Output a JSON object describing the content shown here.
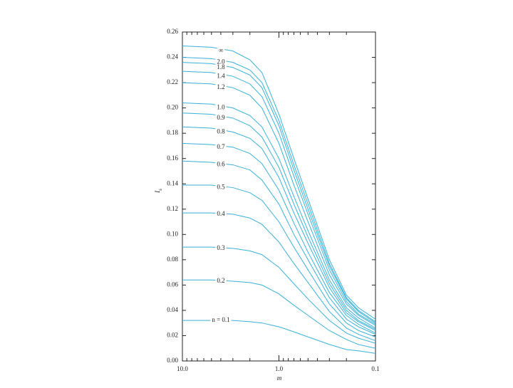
{
  "chart_data": {
    "type": "line",
    "x_label": "m",
    "y_label": {
      "main": "I",
      "sub": "s"
    },
    "xscale": "log",
    "xlim": [
      10,
      0.1
    ],
    "xticks": [
      {
        "value": 10,
        "label": "10.0"
      },
      {
        "value": 1,
        "label": "1.0"
      },
      0.1
    ],
    "xminorticks": [
      9,
      8,
      7,
      6,
      5,
      4,
      3,
      2,
      0.9,
      0.8,
      0.7,
      0.6,
      0.5,
      0.4,
      0.3,
      0.2
    ],
    "ylim": [
      0,
      0.26
    ],
    "yticks": [
      {
        "value": 0,
        "label": "0.00"
      },
      {
        "value": 0.02,
        "label": "0.02"
      },
      {
        "value": 0.04,
        "label": "0.04"
      },
      {
        "value": 0.06,
        "label": "0.06"
      },
      {
        "value": 0.08,
        "label": "0.08"
      },
      {
        "value": 0.1,
        "label": "0.10"
      },
      {
        "value": 0.12,
        "label": "0.12"
      },
      {
        "value": 0.14,
        "label": "0.14"
      },
      {
        "value": 0.16,
        "label": "0.16"
      },
      {
        "value": 0.18,
        "label": "0.18"
      },
      {
        "value": 0.2,
        "label": "0.20"
      },
      {
        "value": 0.22,
        "label": "0.22"
      },
      {
        "value": 0.24,
        "label": "0.24"
      },
      {
        "value": 0.26,
        "label": "0.26"
      }
    ],
    "color": "#3ab0d8",
    "x": [
      10,
      5,
      3,
      2,
      1.5,
      1,
      0.7,
      0.5,
      0.3,
      0.2,
      0.15,
      0.1
    ],
    "series": [
      {
        "name": "∞",
        "values": [
          0.249,
          0.248,
          0.245,
          0.238,
          0.228,
          0.195,
          0.16,
          0.128,
          0.08,
          0.052,
          0.042,
          0.033
        ]
      },
      {
        "name": "2.0",
        "values": [
          0.24,
          0.239,
          0.236,
          0.23,
          0.22,
          0.19,
          0.155,
          0.124,
          0.077,
          0.05,
          0.04,
          0.031
        ]
      },
      {
        "name": "1.8",
        "values": [
          0.236,
          0.235,
          0.232,
          0.226,
          0.216,
          0.186,
          0.151,
          0.12,
          0.075,
          0.049,
          0.039,
          0.03
        ]
      },
      {
        "name": "1.4",
        "values": [
          0.229,
          0.228,
          0.225,
          0.219,
          0.209,
          0.18,
          0.146,
          0.116,
          0.072,
          0.047,
          0.037,
          0.029
        ]
      },
      {
        "name": "1.2",
        "values": [
          0.22,
          0.219,
          0.216,
          0.21,
          0.2,
          0.172,
          0.139,
          0.11,
          0.068,
          0.045,
          0.036,
          0.028
        ]
      },
      {
        "name": "1.0",
        "values": [
          0.204,
          0.203,
          0.2,
          0.194,
          0.185,
          0.16,
          0.13,
          0.103,
          0.064,
          0.042,
          0.034,
          0.026
        ]
      },
      {
        "name": "0.9",
        "values": [
          0.196,
          0.195,
          0.192,
          0.186,
          0.177,
          0.153,
          0.124,
          0.098,
          0.061,
          0.04,
          0.032,
          0.025
        ]
      },
      {
        "name": "0.8",
        "values": [
          0.185,
          0.184,
          0.181,
          0.176,
          0.168,
          0.145,
          0.117,
          0.093,
          0.058,
          0.038,
          0.031,
          0.024
        ]
      },
      {
        "name": "0.7",
        "values": [
          0.172,
          0.171,
          0.169,
          0.164,
          0.156,
          0.135,
          0.109,
          0.086,
          0.054,
          0.036,
          0.029,
          0.022
        ]
      },
      {
        "name": "0.6",
        "values": [
          0.158,
          0.157,
          0.155,
          0.151,
          0.143,
          0.124,
          0.1,
          0.08,
          0.05,
          0.033,
          0.027,
          0.021
        ]
      },
      {
        "name": "0.5",
        "values": [
          0.139,
          0.139,
          0.137,
          0.133,
          0.127,
          0.11,
          0.09,
          0.072,
          0.045,
          0.03,
          0.024,
          0.019
        ]
      },
      {
        "name": "0.4",
        "values": [
          0.117,
          0.117,
          0.116,
          0.113,
          0.108,
          0.094,
          0.077,
          0.062,
          0.039,
          0.026,
          0.021,
          0.016
        ]
      },
      {
        "name": "0.3",
        "values": [
          0.09,
          0.09,
          0.089,
          0.087,
          0.084,
          0.074,
          0.061,
          0.049,
          0.032,
          0.022,
          0.018,
          0.014
        ]
      },
      {
        "name": "0.2",
        "values": [
          0.064,
          0.064,
          0.063,
          0.062,
          0.06,
          0.053,
          0.044,
          0.036,
          0.024,
          0.017,
          0.013,
          0.01
        ]
      },
      {
        "name": "n = 0.1",
        "values": [
          0.032,
          0.032,
          0.032,
          0.031,
          0.03,
          0.027,
          0.023,
          0.019,
          0.013,
          0.009,
          0.008,
          0.006
        ]
      }
    ]
  }
}
